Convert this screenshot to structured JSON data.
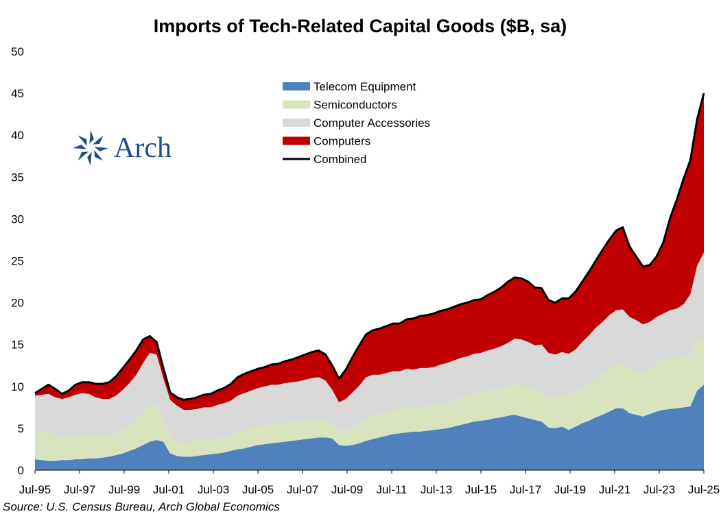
{
  "chart_data": {
    "type": "area",
    "stacked": true,
    "title": "Imports of Tech-Related Capital Goods ($B, sa)",
    "xlabel": "",
    "ylabel": "",
    "x_start": "Jul-95",
    "x_end": "Jul-25",
    "x_step": "quarterly",
    "x_ticks": [
      "Jul-95",
      "Jul-97",
      "Jul-99",
      "Jul-01",
      "Jul-03",
      "Jul-05",
      "Jul-07",
      "Jul-09",
      "Jul-11",
      "Jul-13",
      "Jul-15",
      "Jul-17",
      "Jul-19",
      "Jul-21",
      "Jul-23",
      "Jul-25"
    ],
    "ylim": [
      0,
      50
    ],
    "y_ticks": [
      0,
      5,
      10,
      15,
      20,
      25,
      30,
      35,
      40,
      45,
      50
    ],
    "grid": false,
    "legend_position": "top-center",
    "series": [
      {
        "name": "Telecom Equipment",
        "color": "#4f81bd",
        "values": [
          1.3,
          1.2,
          1.1,
          1.1,
          1.2,
          1.2,
          1.3,
          1.3,
          1.4,
          1.4,
          1.5,
          1.6,
          1.8,
          2.0,
          2.3,
          2.6,
          3.0,
          3.4,
          3.6,
          3.4,
          2.0,
          1.7,
          1.6,
          1.6,
          1.7,
          1.8,
          1.9,
          2.0,
          2.1,
          2.3,
          2.5,
          2.6,
          2.8,
          3.0,
          3.1,
          3.2,
          3.3,
          3.4,
          3.5,
          3.6,
          3.7,
          3.8,
          3.9,
          3.9,
          3.8,
          3.0,
          2.9,
          3.0,
          3.2,
          3.5,
          3.7,
          3.9,
          4.1,
          4.3,
          4.4,
          4.5,
          4.6,
          4.6,
          4.7,
          4.8,
          4.9,
          5.0,
          5.2,
          5.4,
          5.6,
          5.8,
          5.9,
          6.0,
          6.2,
          6.3,
          6.5,
          6.6,
          6.4,
          6.2,
          6.0,
          5.8,
          5.1,
          5.0,
          5.2,
          4.8,
          5.2,
          5.6,
          5.9,
          6.3,
          6.6,
          7.0,
          7.4,
          7.4,
          6.8,
          6.6,
          6.4,
          6.7,
          7.0,
          7.2,
          7.3,
          7.4,
          7.5,
          7.6,
          9.5,
          10.2
        ]
      },
      {
        "name": "Semiconductors",
        "color": "#d7e4bd",
        "values": [
          3.5,
          3.6,
          3.4,
          2.9,
          2.7,
          2.8,
          2.9,
          3.0,
          2.9,
          2.7,
          2.6,
          2.5,
          2.6,
          2.8,
          3.0,
          3.5,
          4.0,
          4.5,
          4.2,
          2.8,
          1.8,
          1.7,
          1.6,
          1.7,
          1.8,
          1.8,
          1.7,
          1.8,
          1.8,
          1.8,
          2.0,
          2.1,
          2.2,
          2.2,
          2.2,
          2.2,
          2.1,
          2.2,
          2.2,
          2.2,
          2.2,
          2.2,
          2.2,
          2.0,
          1.7,
          1.6,
          1.8,
          2.0,
          2.3,
          2.6,
          2.7,
          2.8,
          2.8,
          2.9,
          2.8,
          2.9,
          2.8,
          2.9,
          2.9,
          2.9,
          3.0,
          3.0,
          3.1,
          3.2,
          3.2,
          3.2,
          3.3,
          3.4,
          3.4,
          3.5,
          3.5,
          3.6,
          3.6,
          3.6,
          3.5,
          3.6,
          3.5,
          3.5,
          3.8,
          4.2,
          4.0,
          4.2,
          4.4,
          4.6,
          4.8,
          5.0,
          5.2,
          5.2,
          5.1,
          5.2,
          5.3,
          5.5,
          5.7,
          5.9,
          6.0,
          5.9,
          6.0,
          5.9,
          5.9,
          5.8
        ]
      },
      {
        "name": "Computer Accessories",
        "color": "#d9d9d9",
        "values": [
          4.1,
          4.2,
          4.6,
          4.7,
          4.6,
          4.7,
          4.8,
          4.9,
          4.8,
          4.6,
          4.4,
          4.4,
          4.5,
          4.8,
          5.1,
          5.3,
          5.8,
          6.1,
          6.0,
          4.8,
          4.6,
          4.3,
          4.0,
          3.9,
          3.8,
          3.9,
          3.9,
          4.0,
          4.1,
          4.2,
          4.4,
          4.5,
          4.5,
          4.6,
          4.7,
          4.8,
          4.8,
          4.8,
          4.8,
          4.8,
          4.9,
          5.0,
          5.0,
          4.8,
          4.1,
          3.5,
          3.8,
          4.3,
          4.6,
          5.0,
          5.0,
          4.7,
          4.7,
          4.6,
          4.6,
          4.7,
          4.6,
          4.7,
          4.6,
          4.6,
          4.7,
          4.8,
          4.8,
          4.8,
          4.8,
          4.9,
          4.8,
          4.9,
          4.9,
          5.0,
          5.2,
          5.5,
          5.6,
          5.5,
          5.4,
          5.6,
          5.4,
          5.3,
          5.1,
          4.9,
          5.2,
          5.5,
          5.8,
          6.1,
          6.3,
          6.5,
          6.5,
          6.6,
          6.4,
          6.1,
          5.7,
          5.5,
          5.6,
          5.6,
          5.8,
          6.0,
          6.3,
          7.5,
          9.0,
          10.0
        ]
      },
      {
        "name": "Computers",
        "color": "#c00000",
        "values": [
          0.3,
          0.7,
          1.1,
          1.0,
          0.6,
          0.8,
          1.2,
          1.3,
          1.4,
          1.6,
          1.8,
          2.0,
          2.3,
          2.6,
          2.8,
          2.9,
          2.8,
          2.0,
          1.5,
          1.2,
          0.9,
          1.0,
          1.2,
          1.3,
          1.4,
          1.5,
          1.6,
          1.7,
          1.8,
          2.0,
          2.2,
          2.3,
          2.3,
          2.3,
          2.3,
          2.4,
          2.5,
          2.6,
          2.7,
          2.9,
          3.0,
          3.1,
          3.2,
          3.1,
          2.9,
          2.8,
          3.5,
          4.2,
          4.8,
          5.1,
          5.3,
          5.5,
          5.6,
          5.7,
          5.7,
          5.9,
          6.1,
          6.2,
          6.3,
          6.4,
          6.4,
          6.4,
          6.4,
          6.4,
          6.4,
          6.4,
          6.4,
          6.6,
          6.8,
          7.0,
          7.3,
          7.3,
          7.3,
          7.2,
          6.9,
          6.7,
          6.3,
          6.2,
          6.4,
          6.6,
          6.9,
          7.2,
          7.6,
          8.0,
          8.6,
          9.0,
          9.5,
          9.8,
          8.4,
          7.6,
          6.9,
          6.8,
          7.2,
          8.5,
          11.0,
          13.0,
          15.0,
          16.0,
          17.5,
          19.0
        ]
      }
    ],
    "combined": {
      "name": "Combined",
      "color": "#000000"
    }
  },
  "logo": {
    "text": "Arch",
    "color": "#1f4e8c"
  },
  "source": "Source: U.S. Census Bureau, Arch Global Economics"
}
